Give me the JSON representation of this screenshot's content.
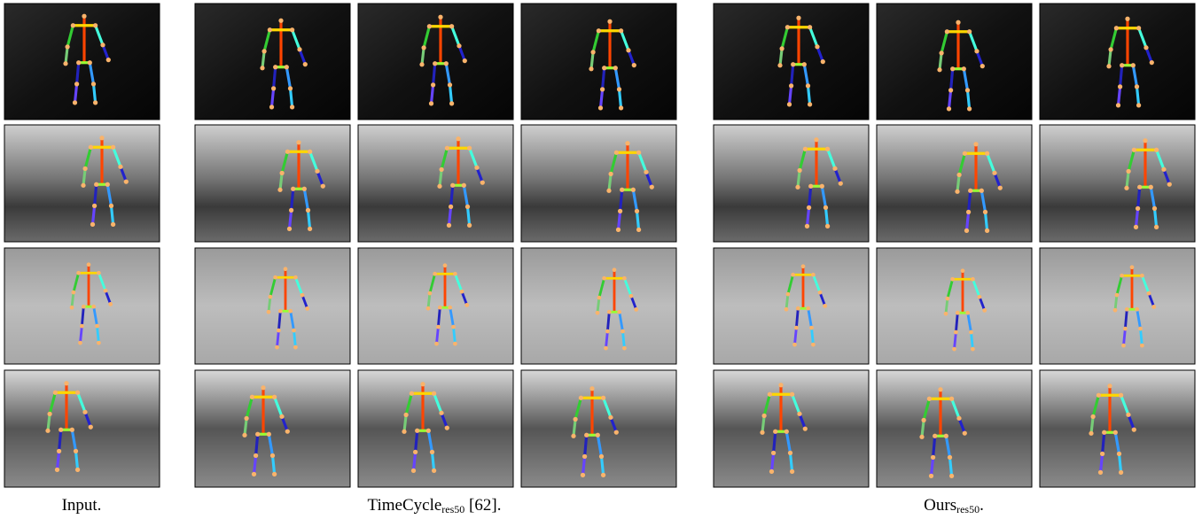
{
  "figure": {
    "captions": [
      {
        "text": "Input."
      },
      {
        "text": "TimeCycle",
        "subscript": "res50",
        "suffix": " [62]."
      },
      {
        "text": "Ours",
        "subscript": "res50",
        "suffix": "."
      }
    ]
  }
}
